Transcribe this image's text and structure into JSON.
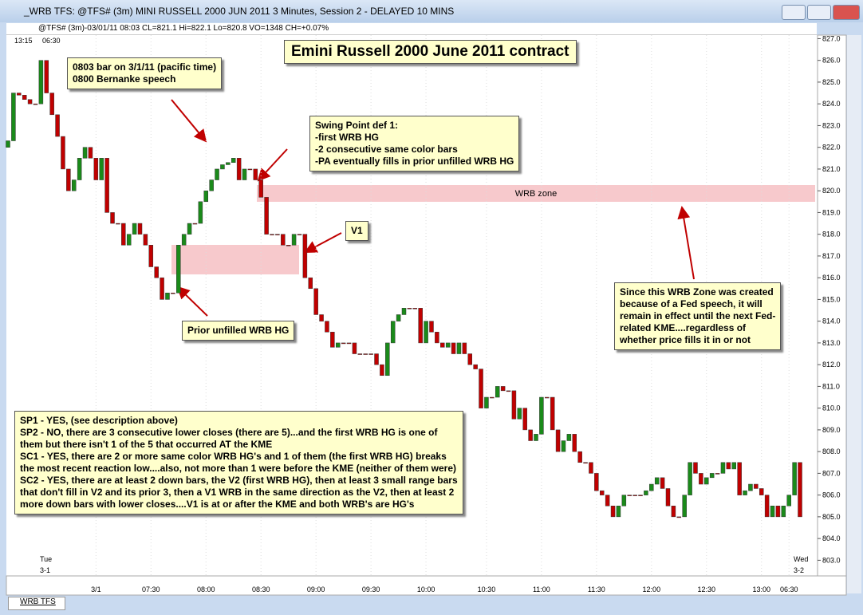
{
  "window": {
    "title": "_WRB TFS: @TFS# (3m) MINI RUSSELL 2000 JUN 2011 3 Minutes, Session 2 - DELAYED 10 MINS",
    "info": "@TFS# (3m)-03/01/11 08:03 CL=821.1 Hi=822.1 Lo=820.8 VO=1348 CH=+0.07%",
    "top_left": [
      "13:15",
      "06:30"
    ],
    "bottom_left": [
      "Tue",
      "3-1"
    ],
    "bottom_right": [
      "Wed",
      "3-2"
    ],
    "tab": "WRB TFS"
  },
  "chart_data": {
    "type": "candlestick",
    "title": "Emini Russell 2000 June 2011 contract",
    "up_color": "#1a8a1a",
    "down_color": "#c00000",
    "ylim": [
      802.5,
      827.2
    ],
    "yticks": [
      {
        "value": 803,
        "label": "803.0"
      },
      {
        "value": 804,
        "label": "804.0"
      },
      {
        "value": 805,
        "label": "805.0"
      },
      {
        "value": 806,
        "label": "806.0"
      },
      {
        "value": 807,
        "label": "807.0"
      },
      {
        "value": 808,
        "label": "808.0"
      },
      {
        "value": 809,
        "label": "809.0"
      },
      {
        "value": 810,
        "label": "810.0"
      },
      {
        "value": 811,
        "label": "811.0"
      },
      {
        "value": 812,
        "label": "812.0"
      },
      {
        "value": 813,
        "label": "813.0"
      },
      {
        "value": 814,
        "label": "814.0"
      },
      {
        "value": 815,
        "label": "815.0"
      },
      {
        "value": 816,
        "label": "816.0"
      },
      {
        "value": 817,
        "label": "817.0"
      },
      {
        "value": 818,
        "label": "818.0"
      },
      {
        "value": 819,
        "label": "819.0"
      },
      {
        "value": 820,
        "label": "820.0"
      },
      {
        "value": 821,
        "label": "821.0"
      },
      {
        "value": 822,
        "label": "822.0"
      },
      {
        "value": 823,
        "label": "823.0"
      },
      {
        "value": 824,
        "label": "824.0"
      },
      {
        "value": 825,
        "label": "825.0"
      },
      {
        "value": 826,
        "label": "826.0"
      },
      {
        "value": 827,
        "label": "827.0"
      }
    ],
    "time_labels": [
      {
        "at_bar": 16,
        "label": "3/1"
      },
      {
        "at_bar": 26,
        "label": "07:30"
      },
      {
        "at_bar": 36,
        "label": "08:00"
      },
      {
        "at_bar": 46,
        "label": "08:30"
      },
      {
        "at_bar": 56,
        "label": "09:00"
      },
      {
        "at_bar": 66,
        "label": "09:30"
      },
      {
        "at_bar": 76,
        "label": "10:00"
      },
      {
        "at_bar": 87,
        "label": "10:30"
      },
      {
        "at_bar": 97,
        "label": "11:00"
      },
      {
        "at_bar": 107,
        "label": "11:30"
      },
      {
        "at_bar": 117,
        "label": "12:00"
      },
      {
        "at_bar": 127,
        "label": "12:30"
      },
      {
        "at_bar": 137,
        "label": "13:00"
      },
      {
        "at_bar": 142,
        "label": "06:30"
      }
    ],
    "open": [
      822.0,
      822.3,
      824.5,
      824.4,
      824.2,
      824,
      824,
      826,
      824.5,
      823.5,
      822.5,
      821,
      820,
      820.5,
      821.5,
      822,
      821.5,
      820.5,
      821.5,
      819,
      818.5,
      818.5,
      817.5,
      818,
      818.5,
      818,
      817.5,
      816.5,
      816,
      815,
      815.3,
      815.3,
      817.5,
      818,
      818.5,
      818.5,
      819.5,
      820,
      820.5,
      821,
      821.2,
      821.3,
      821.5,
      820.5,
      821,
      821,
      820.5,
      819.7,
      818,
      818,
      818,
      817.5,
      817.5,
      818,
      818,
      816,
      815.5,
      814.3,
      814,
      813.5,
      812.8,
      813,
      813,
      813,
      812.5,
      812.5,
      812.5,
      812.5,
      812,
      811.5,
      813,
      814,
      814.3,
      814.6,
      814.6,
      814.6,
      813,
      814,
      813.5,
      813,
      812.8,
      813,
      812.5,
      813,
      812.5,
      812,
      811.8,
      810,
      810.5,
      810.5,
      811,
      810.8,
      810.8,
      809.5,
      810,
      809,
      808.5,
      808.8,
      810.5,
      810.5,
      809,
      808,
      808.5,
      808.8,
      808,
      807.5,
      807.5,
      807,
      806.2,
      806,
      805.5,
      805,
      805.5,
      806,
      806,
      806,
      806,
      806.2,
      806.5,
      806.8,
      806.3,
      805.5,
      805,
      805,
      806,
      807.5,
      807,
      806.5,
      806.8,
      807,
      807,
      807.5,
      807.2,
      807.5,
      806,
      806.2,
      806.5,
      806.3,
      806,
      805,
      805.5,
      805,
      805.5,
      806,
      807.5
    ],
    "close": [
      822.3,
      824.5,
      824.4,
      824.2,
      824,
      824,
      826,
      824.5,
      823.5,
      822.5,
      821,
      820,
      820.5,
      821.5,
      822,
      821.5,
      820.5,
      821.5,
      819,
      818.5,
      818.5,
      817.5,
      818,
      818.5,
      818,
      817.5,
      816.5,
      816,
      815,
      815.3,
      815.3,
      817.5,
      818,
      818.5,
      818.5,
      819.5,
      820,
      820.5,
      821,
      821.2,
      821.3,
      821.5,
      820.5,
      821,
      821,
      820.5,
      819.7,
      818,
      818,
      818,
      817.5,
      817.5,
      818,
      818,
      816,
      815.5,
      814.3,
      814,
      813.5,
      812.8,
      813,
      813,
      813,
      812.5,
      812.5,
      812.5,
      812.5,
      812,
      811.5,
      813,
      814,
      814.3,
      814.6,
      814.6,
      814.6,
      813,
      814,
      813.5,
      813,
      812.8,
      813,
      812.5,
      813,
      812.5,
      812,
      811.8,
      810,
      810.5,
      810.5,
      811,
      810.8,
      810.8,
      809.5,
      810,
      809,
      808.5,
      808.8,
      810.5,
      810.5,
      809,
      808,
      808.5,
      808.8,
      808,
      807.5,
      807.5,
      807,
      806.2,
      806,
      805.5,
      805,
      805.5,
      806,
      806,
      806,
      806,
      806.2,
      806.5,
      806.8,
      806.3,
      805.5,
      805,
      805,
      806,
      807.5,
      807,
      806.5,
      806.8,
      807,
      807,
      807.5,
      807.2,
      807.5,
      806,
      806.2,
      806.5,
      806.3,
      806,
      805,
      805.5,
      805,
      805.5,
      806,
      807.5,
      805
    ]
  },
  "zone_label": "WRB zone",
  "annotations": [
    [
      "0803 bar on 3/1/11 (pacific time)",
      "0800 Bernanke speech"
    ],
    [
      "Swing Point def 1:",
      "-first WRB HG",
      "-2 consecutive same color bars",
      "-PA eventually fills in prior unfilled WRB HG"
    ],
    [
      "V1"
    ],
    [
      "Prior unfilled WRB HG"
    ],
    [
      "Since this WRB Zone was created",
      "because of a Fed speech, it will",
      "remain in effect until the next Fed-",
      "related KME....regardless of",
      "whether price fills it in or not"
    ],
    [
      "SP1 - YES, (see description above)",
      "SP2 - NO, there are 3 consecutive lower closes (there are 5)...and the first WRB HG is one of",
      "them but there isn't 1 of the 5 that occurred AT the KME",
      "SC1 - YES, there are 2 or more same color WRB HG's and 1 of them (the first WRB HG) breaks",
      "the most recent reaction low....also, not more than 1 were before the KME (neither of them were)",
      "SC2 - YES, there are at least 2 down bars, the V2 (first WRB HG), then at least 3 small range bars",
      "that don't fill in V2 and its prior 3, then a V1 WRB in the same direction as the V2, then at least 2",
      "more down bars with lower closes....V1 is at or after the KME and both WRB's are HG's"
    ]
  ]
}
